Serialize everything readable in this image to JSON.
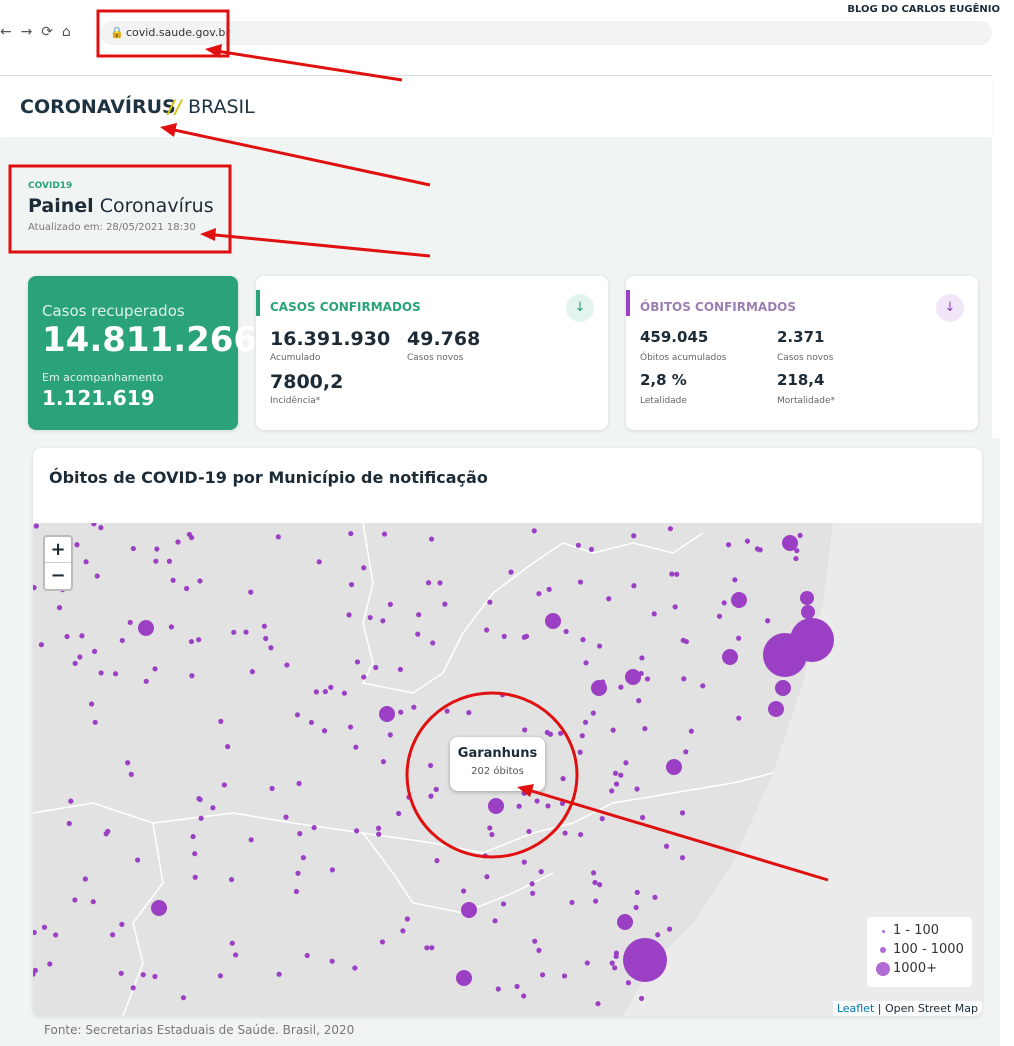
{
  "watermark": "BLOG DO CARLOS EUGÊNIO",
  "browser": {
    "url": "covid.saude.gov.br"
  },
  "header": {
    "brand": "CORONAVÍRUS",
    "separator": "//",
    "country": "BRASIL"
  },
  "panel": {
    "kicker": "COVID19",
    "title_bold": "Painel",
    "title_rest": "Coronavírus",
    "updated": "Atualizado em: 28/05/2021 18:30"
  },
  "recovered": {
    "label": "Casos recuperados",
    "value": "14.811.266",
    "follow_label": "Em acompanhamento",
    "follow_value": "1.121.619"
  },
  "cases": {
    "title": "CASOS CONFIRMADOS",
    "items": [
      {
        "value": "16.391.930",
        "label": "Acumulado"
      },
      {
        "value": "49.768",
        "label": "Casos novos"
      },
      {
        "value": "7800,2",
        "label": "Incidência*"
      }
    ]
  },
  "deaths": {
    "title": "ÓBITOS CONFIRMADOS",
    "items": [
      {
        "value": "459.045",
        "label": "Óbitos acumulados"
      },
      {
        "value": "2.371",
        "label": "Casos novos"
      },
      {
        "value": "2,8 %",
        "label": "Letalidade"
      },
      {
        "value": "218,4",
        "label": "Mortalidade*"
      }
    ]
  },
  "map": {
    "title": "Óbitos de COVID-19 por Município de notificação",
    "zoom_in": "+",
    "zoom_out": "−",
    "tooltip": {
      "name": "Garanhuns",
      "value": "202 óbitos"
    },
    "legend": [
      "1 - 100",
      "100 - 1000",
      "1000+"
    ],
    "attribution": {
      "link": "Leaflet",
      "separator": "|",
      "rest": "Open Street Map"
    }
  },
  "source": "Fonte: Secretarias Estaduais de Saúde. Brasil, 2020"
}
